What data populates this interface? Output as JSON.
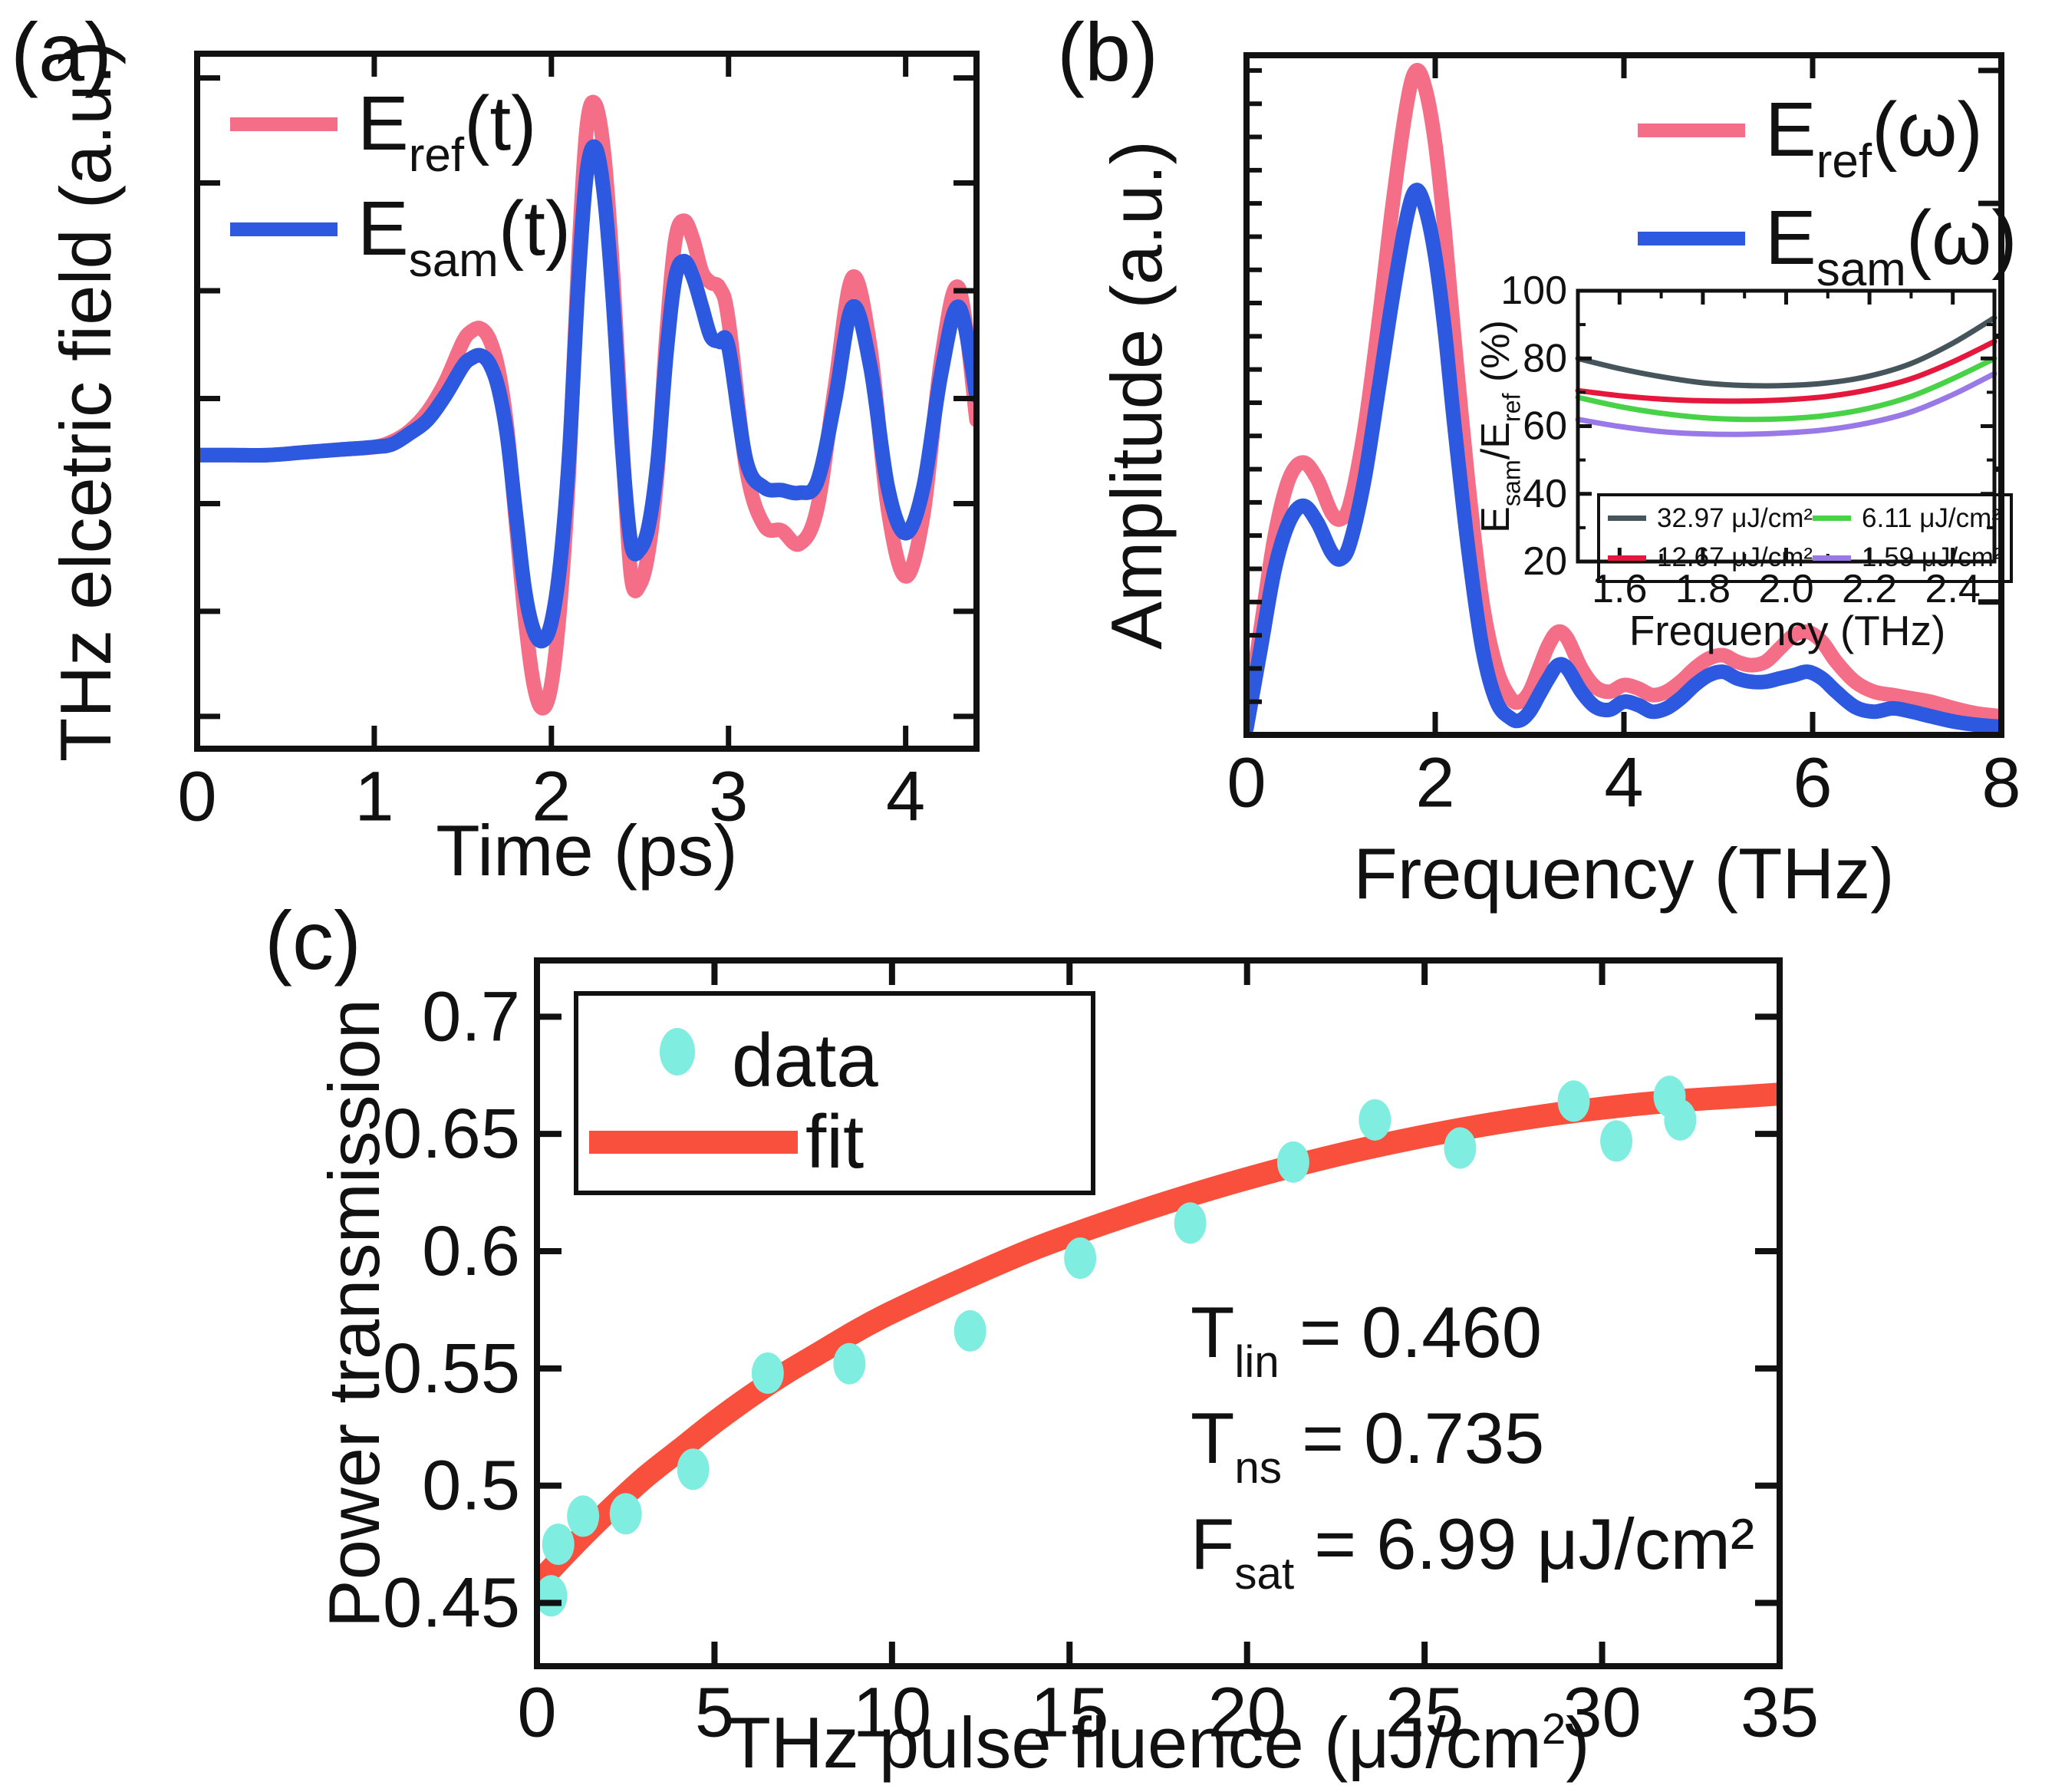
{
  "colors": {
    "ref_pink": "#F56E87",
    "sam_blue": "#2C59E0",
    "data_cyan": "#7FEDDF",
    "fit_red": "#F8503C",
    "inset_gray": "#46545C",
    "inset_crimson": "#E6173C",
    "inset_green": "#47D247",
    "inset_violet": "#9979E8",
    "axis_black": "#111111"
  },
  "panel_a": {
    "letter": "(a)",
    "xlabel": "Time (ps)",
    "ylabel": "THz elcetric field (a.u.)",
    "legend": [
      {
        "pre": "E",
        "sub": "ref",
        "post": "(t)",
        "color": "#F56E87"
      },
      {
        "pre": "E",
        "sub": "sam",
        "post": "(t)",
        "color": "#2C59E0"
      }
    ]
  },
  "panel_b": {
    "letter": "(b)",
    "xlabel": "Frequency (THz)",
    "ylabel": "Amplitude (a.u.)",
    "legend": [
      {
        "pre": "E",
        "sub": "ref",
        "post": "(ω)",
        "color": "#F56E87"
      },
      {
        "pre": "E",
        "sub": "sam",
        "post": "(ω)",
        "color": "#2C59E0"
      }
    ]
  },
  "inset": {
    "xlabel": "Frequency (THz)",
    "ylabel": {
      "pre": "E",
      "sub1": "sam",
      "mid": "/E",
      "sub2": "ref",
      "post": " (%)"
    },
    "legend": [
      {
        "label": "32.97 μJ/cm²",
        "color": "#46545C"
      },
      {
        "label": "12.67 μJ/cm²",
        "color": "#E6173C"
      },
      {
        "label": "6.11 μJ/cm²",
        "color": "#47D247"
      },
      {
        "label": "1.59 μJ/cm²",
        "color": "#9979E8"
      }
    ]
  },
  "panel_c": {
    "letter": "(c)",
    "xlabel": {
      "pre": "THz pulse fluence (μJ/cm",
      "sup": "2",
      "post": ")"
    },
    "ylabel": "Power transmission",
    "legend": {
      "data_label": "data",
      "fit_label": "fit"
    },
    "annotations": [
      {
        "pre": "T",
        "sub": "lin",
        "post": " = 0.460"
      },
      {
        "pre": "T",
        "sub": "ns",
        "post": " = 0.735"
      },
      {
        "pre": "F",
        "sub": "sat",
        "post": " = 6.99 μJ/cm²"
      }
    ]
  },
  "chart_data": [
    {
      "id": "a",
      "type": "line",
      "title": "",
      "xlabel": "Time (ps)",
      "ylabel": "THz elcetric field (a.u.)",
      "xlim": [
        0,
        4.4
      ],
      "ylim": [
        -1.09,
        1.49
      ],
      "xticks": [
        0,
        1,
        2,
        3,
        4
      ],
      "xtick_labels": [
        "0",
        "1",
        "2",
        "3",
        "4"
      ],
      "yticks_unlabeled": [
        -0.97,
        -0.58,
        -0.18,
        0.21,
        0.61,
        1.01,
        1.4
      ],
      "grid": false,
      "legend_position": "upper-left",
      "x": [
        0,
        0.2,
        0.4,
        0.6,
        0.8,
        1.0,
        1.1,
        1.2,
        1.3,
        1.4,
        1.5,
        1.55,
        1.6,
        1.65,
        1.7,
        1.75,
        1.8,
        1.85,
        1.9,
        1.95,
        2.0,
        2.05,
        2.1,
        2.15,
        2.2,
        2.25,
        2.3,
        2.35,
        2.4,
        2.45,
        2.5,
        2.55,
        2.6,
        2.65,
        2.7,
        2.75,
        2.8,
        2.85,
        2.9,
        2.95,
        3.0,
        3.1,
        3.2,
        3.3,
        3.4,
        3.5,
        3.6,
        3.7,
        3.8,
        3.9,
        4.0,
        4.1,
        4.2,
        4.3,
        4.4
      ],
      "series": [
        {
          "name": "E_ref(t)",
          "color": "#F56E87",
          "values": [
            0.0,
            0.0,
            0.0,
            0.01,
            0.02,
            0.03,
            0.05,
            0.09,
            0.16,
            0.27,
            0.42,
            0.46,
            0.47,
            0.43,
            0.32,
            0.1,
            -0.25,
            -0.6,
            -0.85,
            -0.94,
            -0.85,
            -0.55,
            -0.05,
            0.7,
            1.22,
            1.3,
            1.1,
            0.65,
            0.05,
            -0.45,
            -0.48,
            -0.35,
            -0.05,
            0.45,
            0.8,
            0.87,
            0.8,
            0.68,
            0.64,
            0.62,
            0.5,
            -0.05,
            -0.26,
            -0.28,
            -0.33,
            -0.2,
            0.25,
            0.66,
            0.4,
            -0.2,
            -0.45,
            -0.22,
            0.35,
            0.62,
            0.13
          ]
        },
        {
          "name": "E_sam(t)",
          "color": "#2C59E0",
          "values": [
            0.0,
            0.0,
            0.0,
            0.01,
            0.02,
            0.03,
            0.04,
            0.08,
            0.13,
            0.22,
            0.33,
            0.36,
            0.37,
            0.34,
            0.25,
            0.07,
            -0.22,
            -0.5,
            -0.65,
            -0.69,
            -0.62,
            -0.4,
            0.0,
            0.62,
            1.05,
            1.14,
            0.95,
            0.55,
            0.02,
            -0.33,
            -0.35,
            -0.26,
            -0.02,
            0.38,
            0.66,
            0.72,
            0.66,
            0.55,
            0.44,
            0.42,
            0.4,
            -0.02,
            -0.12,
            -0.13,
            -0.14,
            -0.1,
            0.2,
            0.55,
            0.33,
            -0.12,
            -0.29,
            -0.12,
            0.3,
            0.55,
            0.22
          ]
        }
      ]
    },
    {
      "id": "b",
      "type": "line",
      "title": "",
      "xlabel": "Frequency (THz)",
      "ylabel": "Amplitude (a.u.)",
      "xlim": [
        0,
        8
      ],
      "ylim": [
        0,
        1.023
      ],
      "xticks": [
        0,
        2,
        4,
        6,
        8
      ],
      "xtick_labels": [
        "0",
        "2",
        "4",
        "6",
        "8"
      ],
      "xticks_top": [
        2,
        4,
        6
      ],
      "ytick_minor_step": 0.05,
      "yticks_right": [
        0.2,
        0.4,
        0.6,
        0.8,
        1.0
      ],
      "grid": false,
      "legend_position": "upper-right",
      "x": [
        0,
        0.15,
        0.3,
        0.45,
        0.6,
        0.75,
        0.9,
        1.0,
        1.1,
        1.25,
        1.4,
        1.55,
        1.7,
        1.8,
        1.9,
        2.0,
        2.1,
        2.2,
        2.35,
        2.5,
        2.65,
        2.8,
        2.9,
        3.0,
        3.1,
        3.2,
        3.3,
        3.4,
        3.55,
        3.7,
        3.85,
        4.0,
        4.15,
        4.3,
        4.45,
        4.6,
        4.75,
        4.9,
        5.05,
        5.2,
        5.35,
        5.5,
        5.65,
        5.8,
        5.95,
        6.1,
        6.25,
        6.45,
        6.65,
        6.85,
        7.05,
        7.25,
        7.5,
        7.75,
        8.0
      ],
      "series": [
        {
          "name": "E_ref(ω)",
          "color": "#F56E87",
          "values": [
            0.02,
            0.16,
            0.3,
            0.385,
            0.41,
            0.385,
            0.335,
            0.325,
            0.35,
            0.46,
            0.62,
            0.8,
            0.95,
            1.0,
            0.97,
            0.89,
            0.76,
            0.6,
            0.38,
            0.2,
            0.1,
            0.055,
            0.05,
            0.065,
            0.1,
            0.135,
            0.155,
            0.145,
            0.1,
            0.072,
            0.065,
            0.075,
            0.07,
            0.06,
            0.065,
            0.08,
            0.1,
            0.115,
            0.12,
            0.11,
            0.105,
            0.11,
            0.13,
            0.15,
            0.155,
            0.14,
            0.11,
            0.08,
            0.065,
            0.06,
            0.055,
            0.05,
            0.04,
            0.032,
            0.028
          ]
        },
        {
          "name": "E_sam(ω)",
          "color": "#2C59E0",
          "values": [
            0.01,
            0.13,
            0.25,
            0.32,
            0.345,
            0.32,
            0.275,
            0.265,
            0.29,
            0.385,
            0.52,
            0.66,
            0.78,
            0.82,
            0.79,
            0.72,
            0.61,
            0.47,
            0.28,
            0.13,
            0.05,
            0.025,
            0.022,
            0.035,
            0.06,
            0.085,
            0.105,
            0.1,
            0.065,
            0.042,
            0.038,
            0.05,
            0.045,
            0.035,
            0.04,
            0.055,
            0.075,
            0.09,
            0.095,
            0.085,
            0.08,
            0.08,
            0.085,
            0.09,
            0.095,
            0.085,
            0.065,
            0.042,
            0.035,
            0.04,
            0.035,
            0.028,
            0.02,
            0.015,
            0.012
          ]
        }
      ]
    },
    {
      "id": "inset",
      "type": "line",
      "title": "",
      "xlabel": "Frequency (THz)",
      "ylabel": "E_sam/E_ref (%)",
      "xlim": [
        1.5,
        2.5
      ],
      "ylim": [
        20,
        100
      ],
      "xticks": [
        1.6,
        1.8,
        2.0,
        2.2,
        2.4
      ],
      "xtick_labels": [
        "1.6",
        "1.8",
        "2.0",
        "2.2",
        "2.4"
      ],
      "xticks_minor": [
        1.5,
        1.7,
        1.9,
        2.1,
        2.3,
        2.5
      ],
      "yticks": [
        20,
        40,
        60,
        80,
        100
      ],
      "ytick_labels": [
        "20",
        "40",
        "60",
        "80",
        "100"
      ],
      "yticks_minor": [
        30,
        50,
        70,
        90
      ],
      "grid": false,
      "legend_position": "lower-center",
      "x": [
        1.5,
        1.6,
        1.7,
        1.8,
        1.9,
        2.0,
        2.1,
        2.2,
        2.3,
        2.4,
        2.5
      ],
      "series": [
        {
          "name": "32.97 μJ/cm²",
          "color": "#46545C",
          "values": [
            80,
            77,
            74.6,
            72.8,
            72,
            72,
            72.8,
            74.8,
            78.5,
            84.5,
            92
          ]
        },
        {
          "name": "12.67 μJ/cm²",
          "color": "#E6173C",
          "values": [
            70.5,
            69,
            68,
            67.5,
            67.4,
            67.8,
            68.8,
            70.8,
            74,
            79,
            85
          ]
        },
        {
          "name": "6.11 μJ/cm²",
          "color": "#47D247",
          "values": [
            68.5,
            65.8,
            63.8,
            62.5,
            62,
            62.2,
            63.2,
            65.3,
            68.8,
            74,
            80
          ]
        },
        {
          "name": "1.59 μJ/cm²",
          "color": "#9979E8",
          "values": [
            62,
            59.9,
            58.4,
            57.7,
            57.6,
            58,
            59,
            61,
            64.2,
            69.3,
            75.5
          ]
        }
      ]
    },
    {
      "id": "c",
      "type": "scatter",
      "title": "",
      "xlabel": "THz pulse fluence (μJ/cm²)",
      "ylabel": "Power transmission",
      "xlim": [
        0,
        35
      ],
      "ylim": [
        0.423,
        0.724
      ],
      "xticks": [
        0,
        5,
        10,
        15,
        20,
        25,
        30,
        35
      ],
      "xtick_labels": [
        "0",
        "5",
        "10",
        "15",
        "20",
        "25",
        "30",
        "35"
      ],
      "yticks": [
        0.45,
        0.5,
        0.55,
        0.6,
        0.65,
        0.7
      ],
      "ytick_labels": [
        "0.45",
        "0.5",
        "0.55",
        "0.6",
        "0.65",
        "0.7"
      ],
      "grid": false,
      "fit_params": {
        "T_lin": 0.46,
        "T_ns": 0.735,
        "F_sat_uJ_cm2": 6.99
      },
      "points": [
        [
          0.4,
          0.453
        ],
        [
          0.6,
          0.475
        ],
        [
          1.3,
          0.487
        ],
        [
          2.5,
          0.488
        ],
        [
          4.4,
          0.507
        ],
        [
          6.5,
          0.548
        ],
        [
          8.8,
          0.552
        ],
        [
          12.2,
          0.566
        ],
        [
          15.3,
          0.597
        ],
        [
          18.4,
          0.612
        ],
        [
          21.3,
          0.638
        ],
        [
          23.6,
          0.656
        ],
        [
          26.0,
          0.644
        ],
        [
          29.2,
          0.664
        ],
        [
          30.4,
          0.647
        ],
        [
          31.9,
          0.666
        ],
        [
          32.2,
          0.656
        ]
      ],
      "point_color": "#7FEDDF",
      "fit": {
        "color": "#F8503C",
        "x": [
          0,
          1,
          2,
          3,
          4,
          5,
          6,
          7,
          8,
          9,
          10,
          12,
          14,
          16,
          18,
          20,
          22,
          24,
          26,
          28,
          30,
          32,
          34,
          35
        ],
        "y": [
          0.458,
          0.474,
          0.489,
          0.503,
          0.515,
          0.527,
          0.538,
          0.548,
          0.557,
          0.566,
          0.574,
          0.588,
          0.601,
          0.612,
          0.622,
          0.631,
          0.639,
          0.646,
          0.652,
          0.657,
          0.661,
          0.664,
          0.666,
          0.667
        ]
      }
    }
  ]
}
